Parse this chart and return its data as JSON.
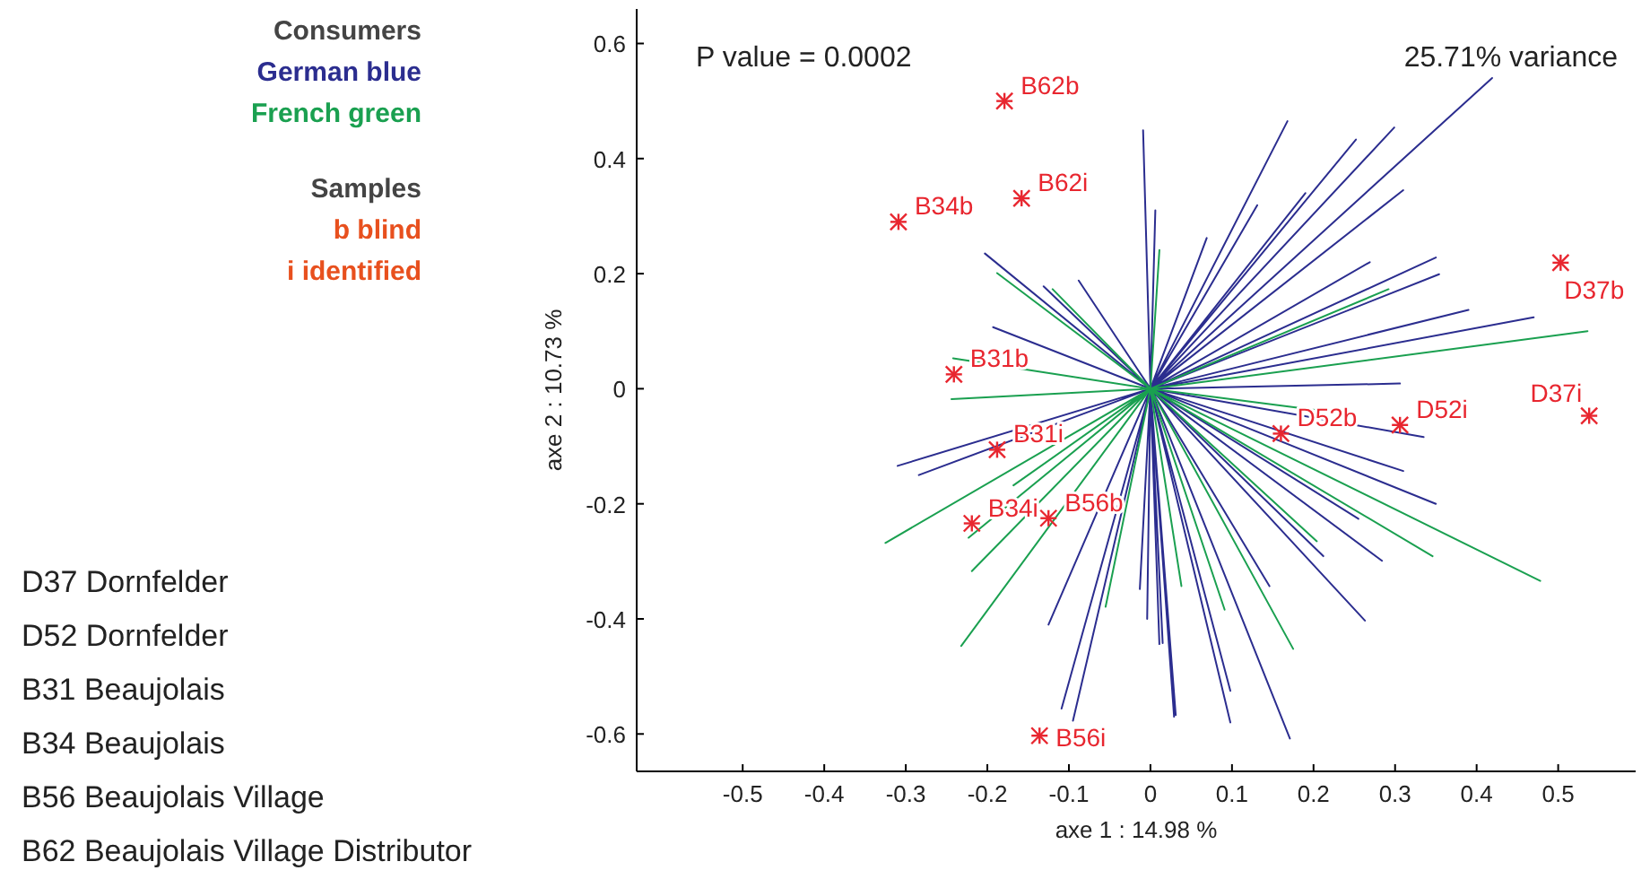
{
  "chart_data": {
    "type": "line",
    "xlabel": "axe 1 : 14.98 %",
    "ylabel": "axe 2 : 10.73 %",
    "legend_title": "Consumers",
    "legend": "left",
    "xlim": [
      -0.63,
      0.595
    ],
    "ylim": [
      -0.665,
      0.66
    ],
    "xticks": [
      -0.5,
      -0.4,
      -0.3,
      -0.2,
      -0.1,
      0,
      0.1,
      0.2,
      0.3,
      0.4,
      0.5
    ],
    "yticks": [
      -0.6,
      -0.4,
      -0.2,
      0,
      0.2,
      0.4,
      0.6
    ],
    "series": [
      {
        "name": "German blue",
        "color": "#2b2d8f",
        "x": [
          0,
          0.419,
          0,
          0.168,
          0,
          0.299,
          0,
          0.252,
          0,
          0.31,
          0,
          -0.009,
          0,
          0.069,
          0,
          0.131,
          0,
          0.35,
          0,
          0.354,
          0,
          0.39,
          0,
          0.47,
          0,
          0.269,
          0,
          0.19,
          0,
          0.006,
          0,
          -0.203,
          0,
          -0.193,
          0,
          -0.088,
          0,
          -0.131,
          0,
          -0.31,
          0,
          -0.284,
          0,
          -0.125,
          0,
          -0.109,
          0,
          -0.095,
          0,
          -0.013,
          0,
          0.015,
          0,
          0.031,
          0,
          -0.004,
          0,
          0.306,
          0,
          0.335,
          0,
          0.31,
          0,
          0.35,
          0,
          0.284,
          0,
          0.263,
          0,
          0.171,
          0,
          0.098,
          0,
          0.029,
          0,
          0.098,
          0,
          0.146,
          0,
          0.212,
          0,
          0.255,
          0,
          0.011
        ],
        "values": [
          0,
          0.54,
          0,
          0.465,
          0,
          0.454,
          0,
          0.433,
          0,
          0.345,
          0,
          0.449,
          0,
          0.262,
          0,
          0.319,
          0,
          0.228,
          0,
          0.199,
          0,
          0.137,
          0,
          0.124,
          0,
          0.22,
          0,
          0.34,
          0,
          0.31,
          0,
          0.235,
          0,
          0.107,
          0,
          0.188,
          0,
          0.178,
          0,
          -0.134,
          0,
          -0.15,
          0,
          -0.41,
          0,
          -0.556,
          0,
          -0.577,
          0,
          -0.348,
          0,
          -0.442,
          0,
          -0.567,
          0,
          -0.4,
          0,
          0.009,
          0,
          -0.084,
          0,
          -0.143,
          0,
          -0.2,
          0,
          -0.299,
          0,
          -0.403,
          0,
          -0.608,
          0,
          -0.58,
          0,
          -0.57,
          0,
          -0.525,
          0,
          -0.343,
          0,
          -0.291,
          0,
          -0.226,
          0,
          -0.445
        ]
      },
      {
        "name": "French green",
        "color": "#1aa050",
        "x": [
          0,
          0.536,
          0,
          0.292,
          0,
          0.011,
          0,
          -0.188,
          0,
          -0.12,
          0,
          -0.242,
          0,
          -0.325,
          0,
          -0.232,
          0,
          -0.219,
          0,
          -0.223,
          0,
          -0.055,
          0,
          0.038,
          0,
          -0.244,
          0,
          -0.168,
          0,
          0.478,
          0,
          0.346,
          0,
          0.204,
          0,
          0.175,
          0,
          0.091,
          0,
          0.208
        ],
        "values": [
          0,
          0.1,
          0,
          0.173,
          0,
          0.241,
          0,
          0.201,
          0,
          0.173,
          0,
          0.053,
          0,
          -0.268,
          0,
          -0.447,
          0,
          -0.317,
          0,
          -0.259,
          0,
          -0.379,
          0,
          -0.343,
          0,
          -0.018,
          0,
          -0.168,
          0,
          -0.334,
          0,
          -0.291,
          0,
          -0.265,
          0,
          -0.452,
          0,
          -0.384,
          0,
          -0.038
        ]
      },
      {
        "type": "scatter",
        "marker": "cross",
        "color": "#e8262f",
        "x": [
          -0.179,
          -0.158,
          -0.309,
          0.503,
          -0.241,
          0.538,
          0.306,
          0.16,
          -0.188,
          -0.219,
          -0.125,
          -0.136
        ],
        "values": [
          0.5,
          0.331,
          0.29,
          0.219,
          0.025,
          -0.047,
          -0.063,
          -0.078,
          -0.106,
          -0.234,
          -0.225,
          -0.603
        ]
      }
    ],
    "annotations": [
      "P value = 0.0002",
      "25.71% variance",
      "Samples",
      "b blind",
      "i identified",
      "D37 Dornfelder",
      "D52 Dornfelder",
      "B31 Beaujolais",
      "B34 Beaujolais",
      "B56 Beaujolais Village",
      "B62 Beaujolais Village Distributor",
      {
        "text": "B62b",
        "x": -0.179,
        "y": 0.5
      },
      {
        "text": "B62i",
        "x": -0.158,
        "y": 0.331
      },
      {
        "text": "B34b",
        "x": -0.309,
        "y": 0.29
      },
      {
        "text": "D37b",
        "x": 0.503,
        "y": 0.219
      },
      {
        "text": "B31b",
        "x": -0.241,
        "y": 0.025
      },
      {
        "text": "D37i",
        "x": 0.538,
        "y": -0.047
      },
      {
        "text": "D52i",
        "x": 0.306,
        "y": -0.063
      },
      {
        "text": "D52b",
        "x": 0.16,
        "y": -0.078
      },
      {
        "text": "B31i",
        "x": -0.188,
        "y": -0.106
      },
      {
        "text": "B34i",
        "x": -0.219,
        "y": -0.234
      },
      {
        "text": "B56b",
        "x": -0.125,
        "y": -0.225
      },
      {
        "text": "B56i",
        "x": -0.136,
        "y": -0.603
      }
    ]
  }
}
